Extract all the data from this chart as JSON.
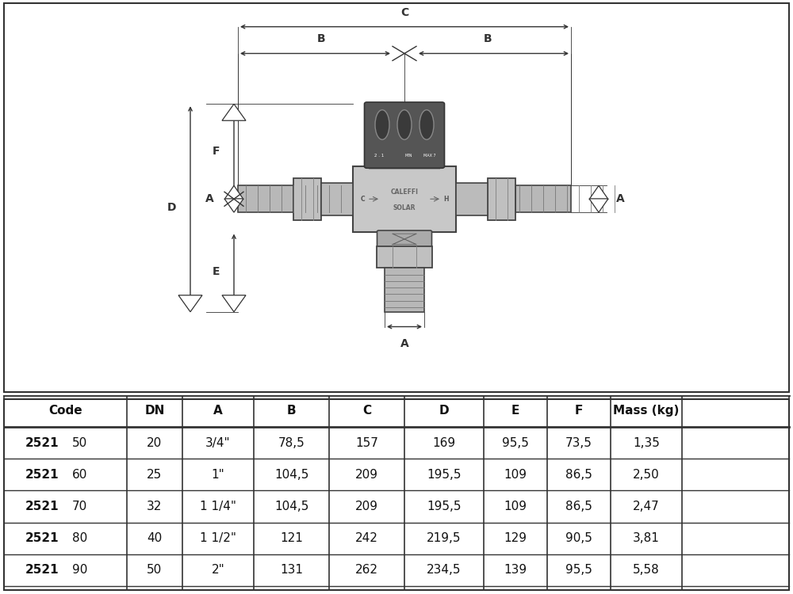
{
  "bg_color": "#ffffff",
  "outer_border_color": "#333333",
  "table_header": [
    "Code",
    "DN",
    "A",
    "B",
    "C",
    "D",
    "E",
    "F",
    "Mass (kg)"
  ],
  "table_rows": [
    [
      "2521",
      "50",
      "20",
      "3/4\"",
      "78,5",
      "157",
      "169",
      "95,5",
      "73,5",
      "1,35"
    ],
    [
      "2521",
      "60",
      "25",
      "1\"",
      "104,5",
      "209",
      "195,5",
      "109",
      "86,5",
      "2,50"
    ],
    [
      "2521",
      "70",
      "32",
      "1 1/4\"",
      "104,5",
      "209",
      "195,5",
      "109",
      "86,5",
      "2,47"
    ],
    [
      "2521",
      "80",
      "40",
      "1 1/2\"",
      "121",
      "242",
      "219,5",
      "129",
      "90,5",
      "3,81"
    ],
    [
      "2521",
      "90",
      "50",
      "2\"",
      "131",
      "262",
      "234,5",
      "139",
      "95,5",
      "5,58"
    ]
  ],
  "lc": "#333333",
  "body_color": "#c8c8c8",
  "dark_color": "#555555",
  "knob_color": "#555555",
  "pipe_color": "#b0b0b0",
  "thread_color": "#777777"
}
